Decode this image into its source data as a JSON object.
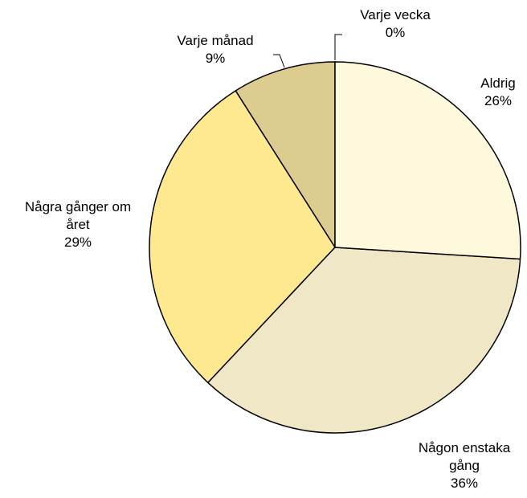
{
  "chart_data": {
    "type": "pie",
    "categories": [
      "Aldrig",
      "Någon enstaka gång",
      "Några gånger om året",
      "Varje månad",
      "Varje vecka"
    ],
    "values": [
      26,
      36,
      29,
      9,
      0
    ],
    "value_labels": [
      "26%",
      "36%",
      "29%",
      "9%",
      "0%"
    ],
    "colors": [
      "#FEF8DC",
      "#EFE7C5",
      "#FFE990",
      "#DCCC90",
      "#C8B870"
    ]
  }
}
